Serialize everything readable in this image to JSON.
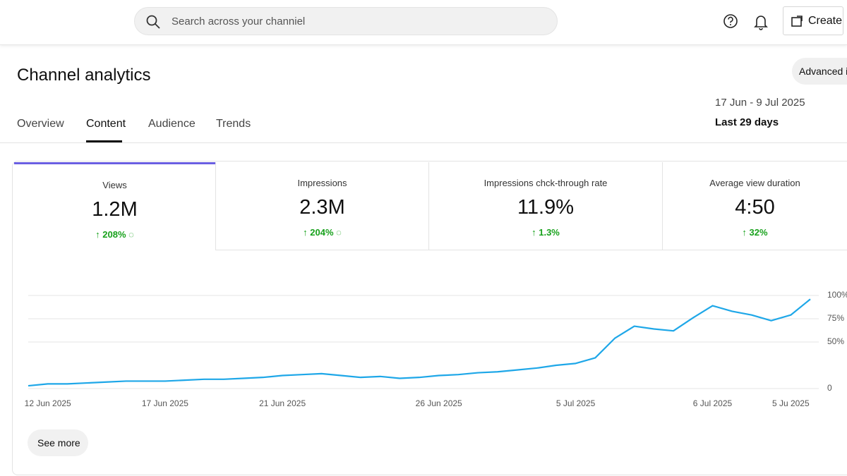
{
  "header": {
    "search_placeholder": "Search across your channiel",
    "create_label": "Create"
  },
  "page": {
    "title": "Channel analytics",
    "advanced_button": "Advanced i",
    "tabs": [
      "Overview",
      "Content",
      "Audience",
      "Trends"
    ],
    "date_range": "17 Jun - 9 Jul 2025",
    "period": "Last 29 days",
    "metrics": [
      {
        "label": "Views",
        "value": "1.2M",
        "change": "208%"
      },
      {
        "label": "Impressions",
        "value": "2.3M",
        "change": "204%"
      },
      {
        "label": "Impressions chck-through rate",
        "value": "11.9%",
        "change": "1.3%"
      },
      {
        "label": "Average view duration",
        "value": "4:50",
        "change": "32%"
      }
    ],
    "see_more": "See more"
  },
  "chart_data": {
    "type": "line",
    "categories": [
      null,
      "12 Jun 2025",
      null,
      null,
      null,
      null,
      null,
      "17 Jun 2025",
      null,
      null,
      null,
      null,
      null,
      "21 Jun 2025",
      null,
      null,
      null,
      null,
      null,
      null,
      null,
      "26 Jun 2025",
      null,
      null,
      null,
      null,
      null,
      null,
      "5 Jul 2025",
      null,
      null,
      null,
      null,
      null,
      null,
      "6 Jul 2025",
      null,
      null,
      null,
      "5 Ju 2025",
      null
    ],
    "series": [
      {
        "color": "#1ea7e8",
        "values": [
          3,
          5,
          5,
          6,
          7,
          8,
          8,
          8,
          9,
          10,
          10,
          11,
          12,
          14,
          15,
          16,
          14,
          12,
          13,
          11,
          12,
          14,
          15,
          17,
          18,
          20,
          22,
          25,
          27,
          33,
          54,
          67,
          64,
          62,
          76,
          89,
          83,
          79,
          73,
          79,
          96
        ]
      }
    ],
    "ylim": [
      0,
      100
    ],
    "yticks": [
      0,
      {
        "value": 50,
        "label": "50%"
      },
      {
        "value": 75,
        "label": "75%"
      },
      {
        "value": 100,
        "label": "100%"
      }
    ],
    "grid": true
  }
}
